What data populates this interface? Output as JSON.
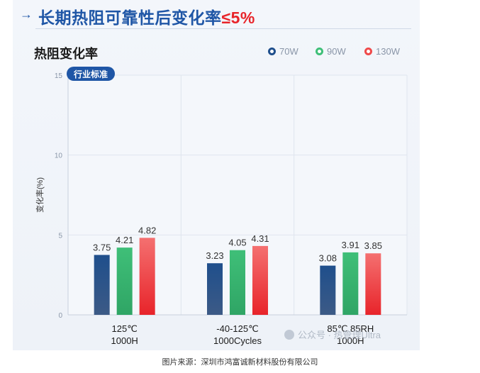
{
  "header": {
    "title_main": "长期热阻可靠性后变化率",
    "title_accent": "≤5%"
  },
  "credit": "图片来源：深圳市鸿富诚新材料股份有限公司",
  "watermark": "公众号 · 热管理Ultra",
  "colors": {
    "title": "#1f56a6",
    "accent": "#e8242a",
    "series_70w": "#1f4f8c",
    "series_90w": "#3fbf78",
    "series_130w": "#ef4a4a"
  },
  "icons": {
    "header": "arrow-icon",
    "watermark": "wechat-icon"
  },
  "chart_data": {
    "type": "bar",
    "title": "热阻变化率",
    "ylabel": "变化率(%)",
    "ylim": [
      0,
      15
    ],
    "yticks": [
      0,
      5,
      10,
      15
    ],
    "grid": true,
    "legend_position": "top-right",
    "reference_label": "行业标准",
    "categories": [
      "125℃\n1000H",
      "-40-125℃\n1000Cycles",
      "85℃ 85RH\n1000H"
    ],
    "series": [
      {
        "name": "70W",
        "values": [
          3.75,
          3.23,
          3.08
        ]
      },
      {
        "name": "90W",
        "values": [
          4.21,
          4.05,
          3.91
        ]
      },
      {
        "name": "130W",
        "values": [
          4.82,
          4.31,
          3.85
        ]
      }
    ]
  }
}
